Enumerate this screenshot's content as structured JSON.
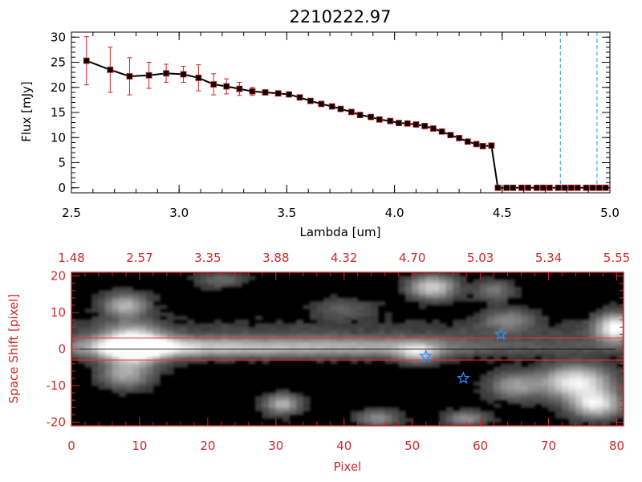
{
  "colors": {
    "background": "#ffffff",
    "axis": "#000000",
    "error_bar": "#d42020",
    "marker_edge": "#d42020",
    "bottom_axis": "#cc2a2a",
    "trace_line": "#ff2a2a",
    "reference_line": "#1f9fd0",
    "star_marker": "#2a8fff"
  },
  "chart_data": [
    {
      "type": "line",
      "title": "2210222.97",
      "xlabel": "Lambda [um]",
      "ylabel": "Flux [mJy]",
      "xlim": [
        2.5,
        5.0
      ],
      "ylim": [
        -1,
        31
      ],
      "xticks": [
        2.5,
        3.0,
        3.5,
        4.0,
        4.5,
        5.0
      ],
      "xtick_labels": [
        "2.5",
        "3.0",
        "3.5",
        "4.0",
        "4.5",
        "5.0"
      ],
      "yticks": [
        0,
        5,
        10,
        15,
        20,
        25,
        30
      ],
      "ytick_labels": [
        "0",
        "5",
        "10",
        "15",
        "20",
        "25",
        "30"
      ],
      "grid": false,
      "series": [
        {
          "marker": "square",
          "x": [
            2.57,
            2.68,
            2.77,
            2.86,
            2.94,
            3.02,
            3.09,
            3.16,
            3.22,
            3.28,
            3.34,
            3.4,
            3.46,
            3.51,
            3.56,
            3.61,
            3.66,
            3.71,
            3.75,
            3.8,
            3.84,
            3.89,
            3.93,
            3.98,
            4.02,
            4.06,
            4.1,
            4.14,
            4.18,
            4.22,
            4.26,
            4.3,
            4.34,
            4.38,
            4.41,
            4.45,
            4.48,
            4.52,
            4.55,
            4.59,
            4.62,
            4.66,
            4.69,
            4.72,
            4.76,
            4.79,
            4.82,
            4.85,
            4.89,
            4.92,
            4.95,
            4.98
          ],
          "y": [
            25.3,
            23.5,
            22.2,
            22.4,
            22.8,
            22.6,
            21.9,
            20.6,
            20.2,
            19.7,
            19.2,
            19.0,
            18.8,
            18.6,
            18.0,
            17.3,
            16.7,
            16.2,
            15.7,
            15.1,
            14.5,
            14.1,
            13.6,
            13.3,
            12.9,
            12.8,
            12.6,
            12.3,
            11.8,
            11.2,
            10.5,
            9.9,
            9.2,
            8.7,
            8.3,
            8.4,
            0.0,
            0.0,
            0.0,
            0.0,
            0.0,
            0.0,
            0.0,
            0.0,
            0.0,
            0.0,
            0.0,
            0.0,
            0.0,
            0.0,
            0.0,
            0.0
          ],
          "yerr": [
            4.8,
            4.5,
            3.7,
            2.6,
            1.8,
            1.6,
            2.6,
            2.1,
            1.5,
            1.3,
            0.8,
            0.5,
            0.4,
            0.3,
            0.3,
            0.2,
            0.2,
            0.2,
            0.2,
            0.2,
            0.2,
            0.2,
            0.2,
            0.2,
            0.2,
            0.2,
            0.2,
            0.2,
            0.2,
            0.2,
            0.2,
            0.2,
            0.2,
            0.2,
            0.2,
            0.2,
            0,
            0,
            0,
            0,
            0,
            0,
            0,
            0,
            0,
            0,
            0,
            0,
            0,
            0,
            0,
            0
          ]
        }
      ],
      "vertical_lines": [
        4.77,
        4.94
      ]
    },
    {
      "type": "heatmap",
      "xlabel": "Pixel",
      "ylabel": "Space Shift [pixel]",
      "xlim": [
        0,
        81
      ],
      "ylim": [
        -21,
        21
      ],
      "xticks": [
        0,
        10,
        20,
        30,
        40,
        50,
        60,
        70,
        80
      ],
      "xtick_labels": [
        "0",
        "10",
        "20",
        "30",
        "40",
        "50",
        "60",
        "70",
        "80"
      ],
      "yticks": [
        -20,
        -10,
        0,
        10,
        20
      ],
      "ytick_labels": [
        "-20",
        "-10",
        "0",
        "10",
        "20"
      ],
      "top_xticks": [
        0,
        10,
        20,
        30,
        40,
        50,
        60,
        70,
        80
      ],
      "top_xtick_labels": [
        "1.48",
        "2.57",
        "3.35",
        "3.88",
        "4.32",
        "4.70",
        "5.03",
        "5.34",
        "5.55"
      ],
      "grid": false,
      "colormap": "grayscale",
      "trace_lines_y": [
        3,
        -3
      ],
      "spectrum_ridge": {
        "y": 0.5,
        "profile": [
          {
            "x": 0,
            "intensity": 0.3
          },
          {
            "x": 6,
            "intensity": 0.55
          },
          {
            "x": 9,
            "intensity": 1.0
          },
          {
            "x": 13,
            "intensity": 0.85
          },
          {
            "x": 20,
            "intensity": 0.62
          },
          {
            "x": 30,
            "intensity": 0.55
          },
          {
            "x": 40,
            "intensity": 0.5
          },
          {
            "x": 48,
            "intensity": 0.45
          },
          {
            "x": 53,
            "intensity": 0.3
          },
          {
            "x": 60,
            "intensity": 0.18
          },
          {
            "x": 70,
            "intensity": 0.12
          },
          {
            "x": 81,
            "intensity": 0.1
          }
        ]
      },
      "sources": [
        {
          "x": 9,
          "y": 1,
          "intensity": 1.0,
          "sx": 3.0,
          "sy": 3.5
        },
        {
          "x": 8,
          "y": 12,
          "intensity": 0.55,
          "sx": 2.2,
          "sy": 2.2
        },
        {
          "x": 8,
          "y": -7,
          "intensity": 0.45,
          "sx": 2.5,
          "sy": 2.5
        },
        {
          "x": 53,
          "y": 17,
          "intensity": 0.7,
          "sx": 2.3,
          "sy": 2.2
        },
        {
          "x": 51,
          "y": -1,
          "intensity": 0.55,
          "sx": 2.0,
          "sy": 1.8
        },
        {
          "x": 64,
          "y": 8,
          "intensity": 0.35,
          "sx": 2.5,
          "sy": 2.0
        },
        {
          "x": 80,
          "y": 6,
          "intensity": 0.9,
          "sx": 2.0,
          "sy": 2.5
        },
        {
          "x": 74,
          "y": -9,
          "intensity": 0.85,
          "sx": 3.5,
          "sy": 3.0
        },
        {
          "x": 77,
          "y": -15,
          "intensity": 0.8,
          "sx": 2.5,
          "sy": 2.5
        },
        {
          "x": 65,
          "y": -10,
          "intensity": 0.45,
          "sx": 2.5,
          "sy": 2.5
        },
        {
          "x": 31,
          "y": -15,
          "intensity": 0.55,
          "sx": 1.8,
          "sy": 1.8
        },
        {
          "x": 45,
          "y": -19,
          "intensity": 0.4,
          "sx": 2.0,
          "sy": 1.5
        },
        {
          "x": 58,
          "y": -19,
          "intensity": 0.4,
          "sx": 2.0,
          "sy": 1.5
        },
        {
          "x": 62,
          "y": 16,
          "intensity": 0.3,
          "sx": 2.0,
          "sy": 2.0
        },
        {
          "x": 22,
          "y": 19,
          "intensity": 0.25,
          "sx": 2.5,
          "sy": 1.5
        },
        {
          "x": 40,
          "y": 11,
          "intensity": 0.2,
          "sx": 3.0,
          "sy": 2.0
        }
      ],
      "star_markers": [
        {
          "x": 52,
          "y": -2
        },
        {
          "x": 63,
          "y": 4
        },
        {
          "x": 57.5,
          "y": -8
        }
      ]
    }
  ]
}
